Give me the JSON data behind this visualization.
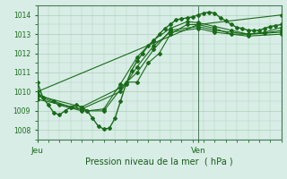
{
  "title": "",
  "xlabel": "Pression niveau de la mer ( hPa )",
  "background_color": "#d8ede6",
  "grid_color": "#b0ccbb",
  "line_color": "#1a6b1a",
  "axis_color": "#4a7a5a",
  "text_color": "#1a5a1a",
  "ylim": [
    1007.6,
    1014.4
  ],
  "xlim": [
    0,
    44
  ],
  "yticks": [
    1008,
    1009,
    1010,
    1011,
    1012,
    1013,
    1014
  ],
  "x_labels": [
    [
      0,
      "Jeu"
    ],
    [
      29,
      "Ven"
    ]
  ],
  "ven_x": 29,
  "series": [
    [
      0,
      1010.5,
      1,
      1009.7,
      2,
      1009.3,
      3,
      1008.9,
      4,
      1008.8,
      5,
      1009.0,
      6,
      1009.2,
      7,
      1009.3,
      8,
      1009.2,
      9,
      1009.0,
      10,
      1008.6,
      11,
      1008.2,
      12,
      1008.05,
      13,
      1008.1,
      14,
      1008.6,
      15,
      1009.5,
      16,
      1010.4,
      17,
      1011.1,
      18,
      1011.6,
      19,
      1012.0,
      20,
      1012.4,
      21,
      1012.65,
      22,
      1013.0,
      23,
      1013.3,
      24,
      1013.5,
      25,
      1013.75,
      26,
      1013.8,
      27,
      1013.85,
      28,
      1013.9,
      29,
      1014.0,
      30,
      1014.1,
      31,
      1014.15,
      32,
      1014.1,
      33,
      1013.85,
      34,
      1013.7,
      35,
      1013.5,
      36,
      1013.35,
      37,
      1013.3,
      38,
      1013.2,
      39,
      1013.2,
      40,
      1013.2,
      41,
      1013.3,
      42,
      1013.4,
      43,
      1013.45,
      44,
      1013.5
    ],
    [
      0,
      1009.9,
      3,
      1009.5,
      6,
      1009.2,
      9,
      1009.0,
      12,
      1009.1,
      15,
      1010.4,
      18,
      1011.8,
      21,
      1012.7,
      24,
      1013.3,
      27,
      1013.65,
      29,
      1013.6,
      32,
      1013.4,
      35,
      1013.2,
      38,
      1013.0,
      41,
      1013.1,
      44,
      1013.35
    ],
    [
      0,
      1009.8,
      4,
      1009.3,
      8,
      1009.0,
      12,
      1009.0,
      16,
      1010.5,
      18,
      1010.5,
      20,
      1011.5,
      22,
      1012.0,
      24,
      1013.0,
      27,
      1013.5,
      29,
      1013.5,
      32,
      1013.3,
      35,
      1013.0,
      38,
      1013.0,
      41,
      1013.05,
      44,
      1013.2
    ],
    [
      0,
      1009.8,
      8,
      1009.2,
      15,
      1010.2,
      18,
      1011.0,
      21,
      1012.2,
      24,
      1013.2,
      29,
      1013.4,
      32,
      1013.2,
      38,
      1013.0,
      44,
      1013.1
    ],
    [
      0,
      1009.6,
      8,
      1009.1,
      15,
      1010.0,
      18,
      1011.3,
      21,
      1012.4,
      24,
      1013.1,
      29,
      1013.3,
      32,
      1013.1,
      38,
      1012.9,
      44,
      1013.0
    ],
    [
      0,
      1010.0,
      29,
      1013.5,
      44,
      1014.0
    ]
  ]
}
